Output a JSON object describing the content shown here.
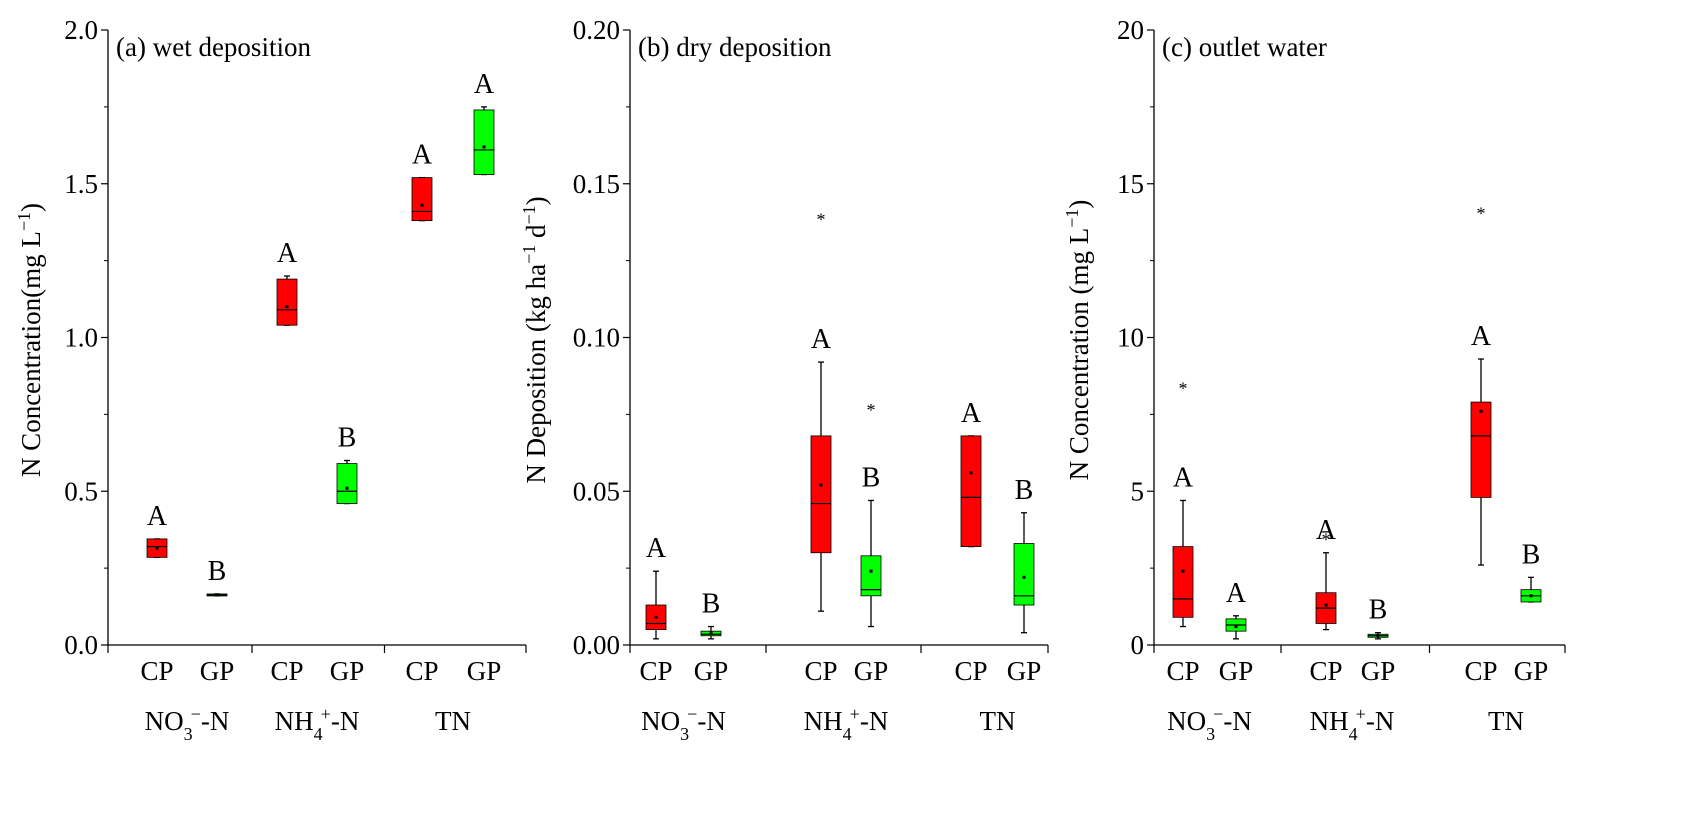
{
  "figure": {
    "colors": {
      "CP": "#ff0000",
      "GP": "#00ff00",
      "whisker": "#000000"
    }
  },
  "chart_data": [
    {
      "type": "box",
      "title": "(a) wet deposition",
      "ylabel_parts": [
        "N Concentration",
        "(mg L",
        "−1",
        ")"
      ],
      "ylim": [
        0,
        2.0
      ],
      "yticks": [
        "0.0",
        "0.5",
        "1.0",
        "1.5",
        "2.0"
      ],
      "groups": [
        {
          "name_base": "NO",
          "name_sub": "3",
          "name_sup": "−",
          "name_tail": "-N"
        },
        {
          "name_base": "NH",
          "name_sub": "4",
          "name_sup": "+",
          "name_tail": "-N"
        },
        {
          "name_base": "TN",
          "name_sub": "",
          "name_sup": "",
          "name_tail": ""
        }
      ],
      "series_labels": [
        "CP",
        "GP"
      ],
      "boxes": [
        {
          "group": 0,
          "series": "CP",
          "q1": 0.285,
          "median": 0.32,
          "q3": 0.345,
          "wlo": 0.285,
          "whi": 0.345,
          "mean": 0.315,
          "outliers": [],
          "sig": "A"
        },
        {
          "group": 0,
          "series": "GP",
          "q1": 0.16,
          "median": 0.163,
          "q3": 0.166,
          "wlo": 0.16,
          "whi": 0.166,
          "mean": 0.163,
          "outliers": [],
          "sig": "B"
        },
        {
          "group": 1,
          "series": "CP",
          "q1": 1.04,
          "median": 1.09,
          "q3": 1.19,
          "wlo": 1.04,
          "whi": 1.2,
          "mean": 1.1,
          "outliers": [],
          "sig": "A"
        },
        {
          "group": 1,
          "series": "GP",
          "q1": 0.46,
          "median": 0.5,
          "q3": 0.59,
          "wlo": 0.46,
          "whi": 0.6,
          "mean": 0.51,
          "outliers": [],
          "sig": "B"
        },
        {
          "group": 2,
          "series": "CP",
          "q1": 1.38,
          "median": 1.41,
          "q3": 1.52,
          "wlo": 1.38,
          "whi": 1.52,
          "mean": 1.43,
          "outliers": [],
          "sig": "A"
        },
        {
          "group": 2,
          "series": "GP",
          "q1": 1.53,
          "median": 1.61,
          "q3": 1.74,
          "wlo": 1.53,
          "whi": 1.75,
          "mean": 1.62,
          "outliers": [],
          "sig": "A"
        }
      ]
    },
    {
      "type": "box",
      "title": "(b) dry deposition",
      "ylabel_parts": [
        "N Deposition (kg ha",
        "−1",
        " d",
        "−1",
        ")"
      ],
      "ylim": [
        0,
        0.2
      ],
      "yticks": [
        "0.00",
        "0.05",
        "0.10",
        "0.15",
        "0.20"
      ],
      "groups": [
        {
          "name_base": "NO",
          "name_sub": "3",
          "name_sup": "−",
          "name_tail": "-N"
        },
        {
          "name_base": "NH",
          "name_sub": "4",
          "name_sup": "+",
          "name_tail": "-N"
        },
        {
          "name_base": "TN",
          "name_sub": "",
          "name_sup": "",
          "name_tail": ""
        }
      ],
      "series_labels": [
        "CP",
        "GP"
      ],
      "boxes": [
        {
          "group": 0,
          "series": "CP",
          "q1": 0.005,
          "median": 0.007,
          "q3": 0.013,
          "wlo": 0.002,
          "whi": 0.024,
          "mean": 0.009,
          "outliers": [],
          "sig": "A"
        },
        {
          "group": 0,
          "series": "GP",
          "q1": 0.003,
          "median": 0.0035,
          "q3": 0.0045,
          "wlo": 0.002,
          "whi": 0.006,
          "mean": 0.004,
          "outliers": [],
          "sig": "B"
        },
        {
          "group": 1,
          "series": "CP",
          "q1": 0.03,
          "median": 0.046,
          "q3": 0.068,
          "wlo": 0.011,
          "whi": 0.092,
          "mean": 0.052,
          "outliers": [
            0.139
          ],
          "sig": "A"
        },
        {
          "group": 1,
          "series": "GP",
          "q1": 0.016,
          "median": 0.018,
          "q3": 0.029,
          "wlo": 0.006,
          "whi": 0.047,
          "mean": 0.024,
          "outliers": [
            0.077
          ],
          "sig": "B"
        },
        {
          "group": 2,
          "series": "CP",
          "q1": 0.032,
          "median": 0.048,
          "q3": 0.068,
          "wlo": 0.032,
          "whi": 0.068,
          "mean": 0.056,
          "outliers": [],
          "sig": "A"
        },
        {
          "group": 2,
          "series": "GP",
          "q1": 0.013,
          "median": 0.016,
          "q3": 0.033,
          "wlo": 0.004,
          "whi": 0.043,
          "mean": 0.022,
          "outliers": [],
          "sig": "B"
        }
      ]
    },
    {
      "type": "box",
      "title": "(c) outlet water",
      "ylabel_parts": [
        "N Concentration (mg L",
        "−1",
        ")"
      ],
      "ylim": [
        0,
        20
      ],
      "yticks": [
        "0",
        "5",
        "10",
        "15",
        "20"
      ],
      "groups": [
        {
          "name_base": "NO",
          "name_sub": "3",
          "name_sup": "−",
          "name_tail": "-N"
        },
        {
          "name_base": "NH",
          "name_sub": "4",
          "name_sup": "+",
          "name_tail": "-N"
        },
        {
          "name_base": "TN",
          "name_sub": "",
          "name_sup": "",
          "name_tail": ""
        }
      ],
      "series_labels": [
        "CP",
        "GP"
      ],
      "boxes": [
        {
          "group": 0,
          "series": "CP",
          "q1": 0.9,
          "median": 1.5,
          "q3": 3.2,
          "wlo": 0.6,
          "whi": 4.7,
          "mean": 2.4,
          "outliers": [
            8.4
          ],
          "sig": "A"
        },
        {
          "group": 0,
          "series": "GP",
          "q1": 0.45,
          "median": 0.65,
          "q3": 0.85,
          "wlo": 0.2,
          "whi": 0.95,
          "mean": 0.6,
          "outliers": [],
          "sig": "A"
        },
        {
          "group": 1,
          "series": "CP",
          "q1": 0.7,
          "median": 1.2,
          "q3": 1.7,
          "wlo": 0.5,
          "whi": 3.0,
          "mean": 1.3,
          "outliers": [
            3.5
          ],
          "sig": "A"
        },
        {
          "group": 1,
          "series": "GP",
          "q1": 0.25,
          "median": 0.3,
          "q3": 0.35,
          "wlo": 0.2,
          "whi": 0.4,
          "mean": 0.3,
          "outliers": [],
          "sig": "B"
        },
        {
          "group": 2,
          "series": "CP",
          "q1": 4.8,
          "median": 6.8,
          "q3": 7.9,
          "wlo": 2.6,
          "whi": 9.3,
          "mean": 7.6,
          "outliers": [
            14.1
          ],
          "sig": "A"
        },
        {
          "group": 2,
          "series": "GP",
          "q1": 1.4,
          "median": 1.6,
          "q3": 1.8,
          "wlo": 1.4,
          "whi": 2.2,
          "mean": 1.6,
          "outliers": [],
          "sig": "B"
        }
      ]
    }
  ]
}
